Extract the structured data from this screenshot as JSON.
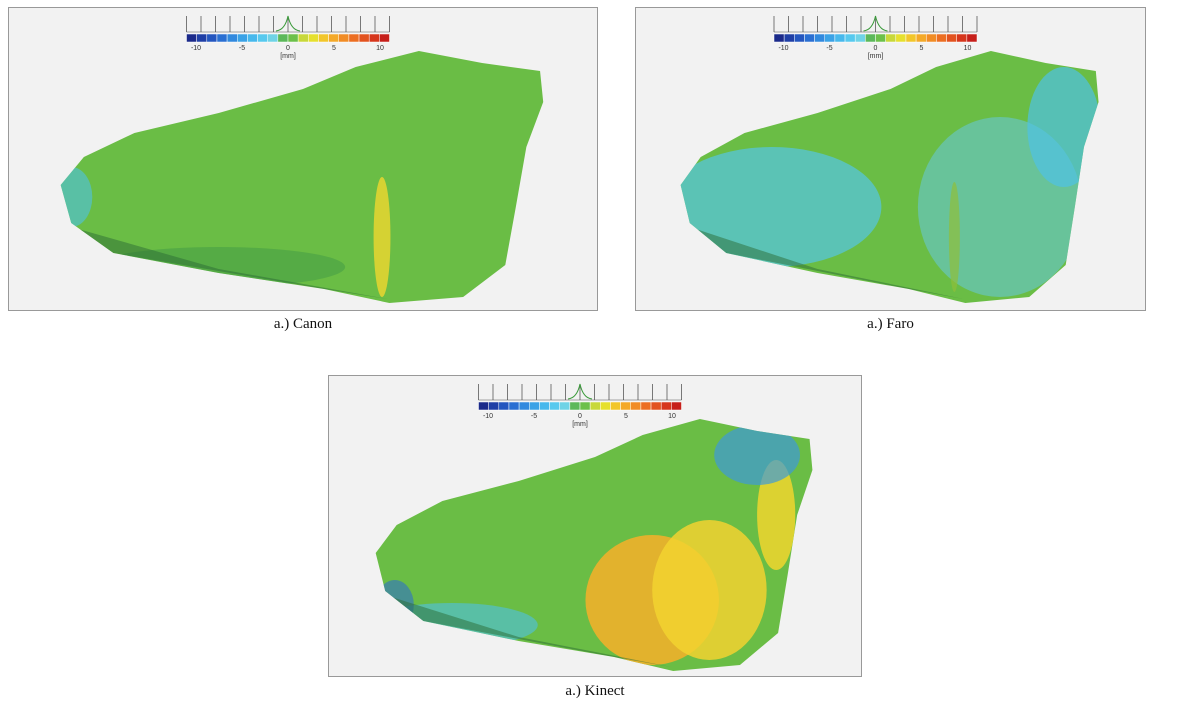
{
  "panels": [
    {
      "caption": "a.) Canon",
      "scale": {
        "ticks": [
          -10,
          -5,
          0,
          5,
          10
        ],
        "unit": "[mm]"
      }
    },
    {
      "caption": "a.) Faro",
      "scale": {
        "ticks": [
          -10,
          -5,
          0,
          5,
          10
        ],
        "unit": "[mm]"
      }
    },
    {
      "caption": "a.) Kinect",
      "scale": {
        "ticks": [
          -10,
          -5,
          0,
          5,
          10
        ],
        "unit": "[mm]"
      }
    }
  ]
}
